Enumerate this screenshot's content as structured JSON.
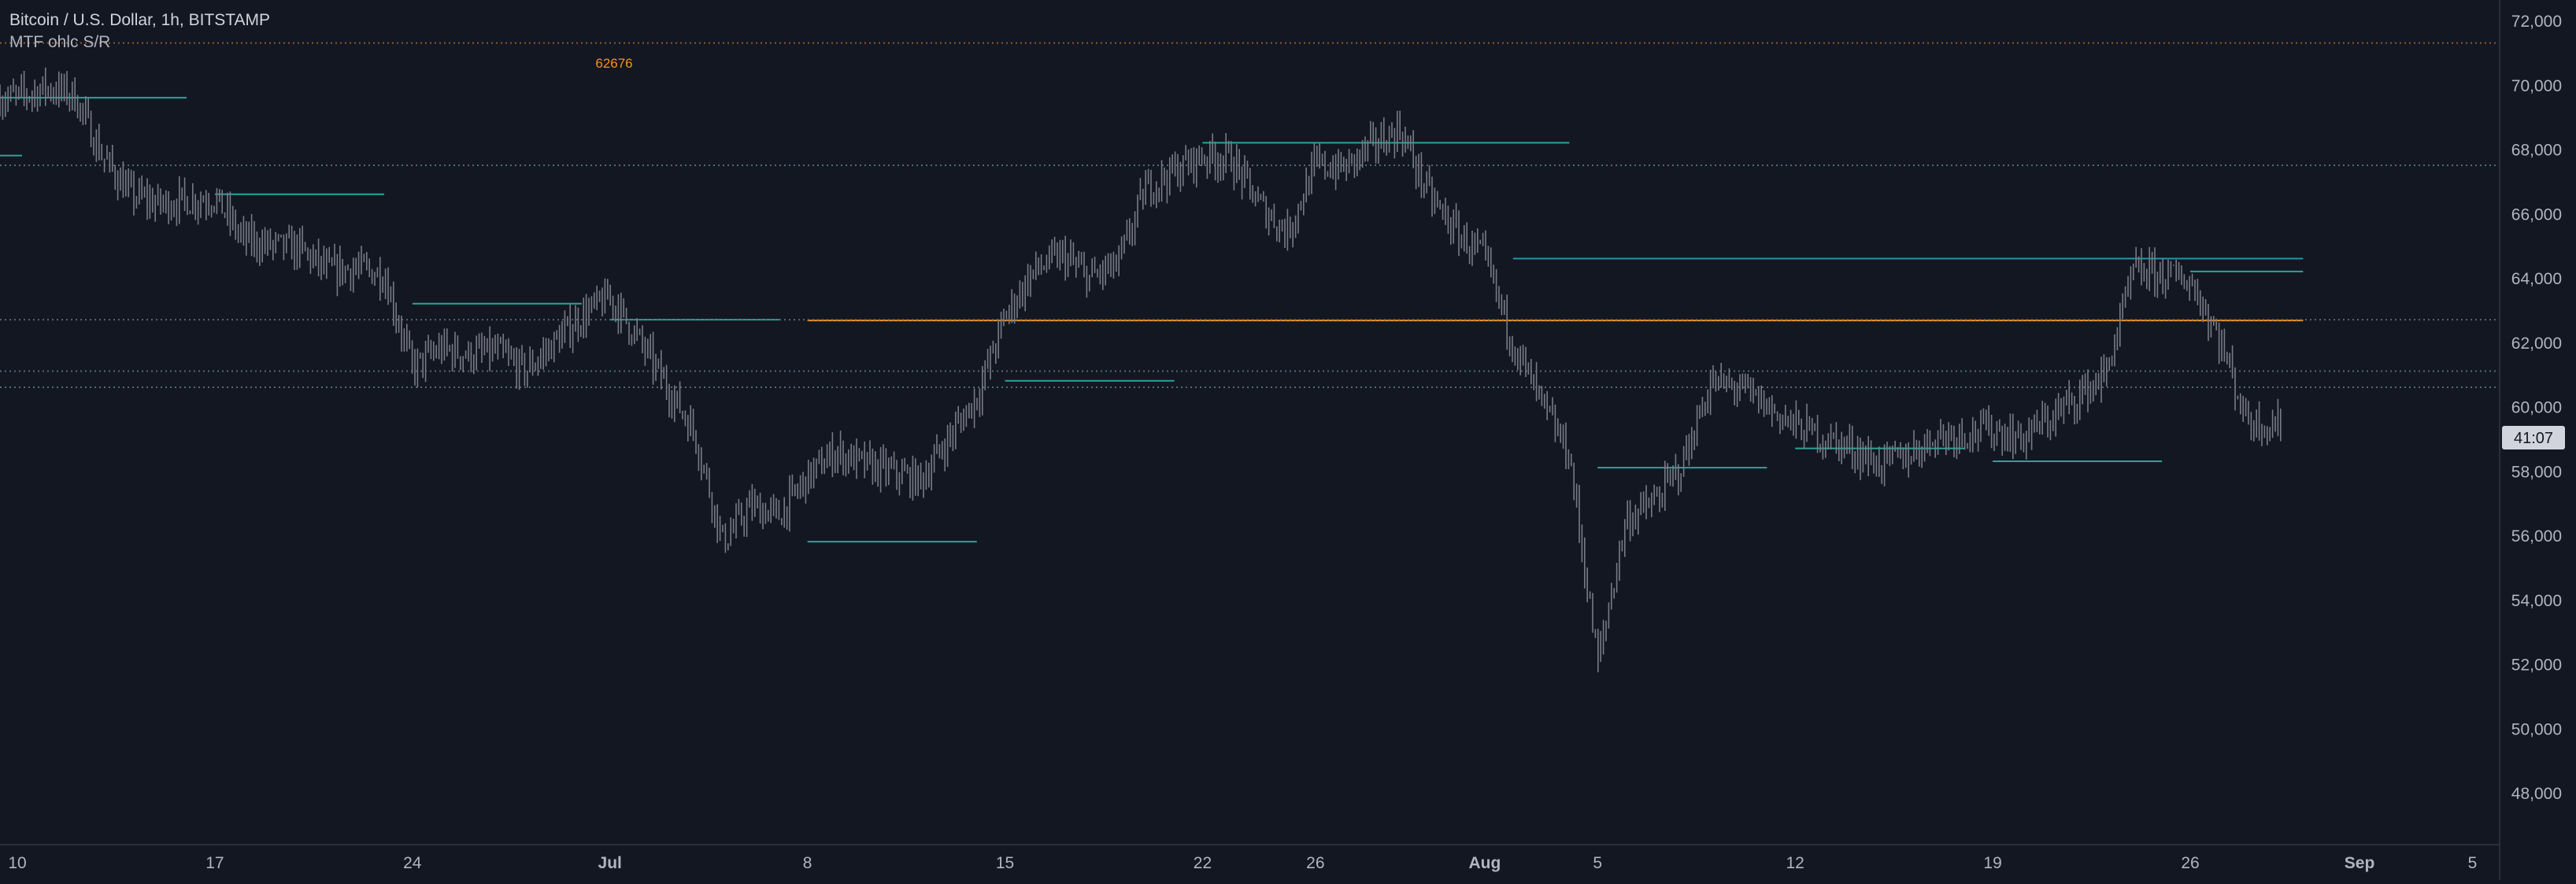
{
  "header": {
    "symbol_title": "Bitcoin / U.S. Dollar, 1h, BITSTAMP",
    "indicator_name": "MTF ohlc S/R"
  },
  "annotations": {
    "top_level_label": "62676",
    "countdown_label": "41:07"
  },
  "colors": {
    "background": "#131722",
    "candles": "#787b86",
    "support_line": "#26a69a",
    "resistance_line": "#2196a8",
    "monthly_line": "#f7931a",
    "dotted_level": "#4e6b7a",
    "top_dotted_level": "#8a5a2c",
    "axis_text": "#b2b5be"
  },
  "chart_data": {
    "type": "line",
    "title": "Bitcoin / U.S. Dollar, 1h, BITSTAMP",
    "x_axis": {
      "tick_labels": [
        "10",
        "17",
        "24",
        "Jul",
        "8",
        "15",
        "22",
        "26",
        "Aug",
        "5",
        "12",
        "19",
        "26",
        "Sep",
        "5"
      ],
      "range": [
        "2024-06-10",
        "2024-09-07"
      ]
    },
    "y_axis": {
      "tick_labels": [
        "72,000",
        "70,000",
        "68,000",
        "66,000",
        "64,000",
        "62,000",
        "60,000",
        "58,000",
        "56,000",
        "54,000",
        "52,000",
        "50,000",
        "48,000"
      ],
      "range": [
        47300,
        72300
      ],
      "position": "right"
    },
    "grid": false,
    "series": [
      {
        "kind": "price",
        "x": [
          "2024-06-10",
          "2024-06-11",
          "2024-06-12",
          "2024-06-13",
          "2024-06-14",
          "2024-06-15",
          "2024-06-17",
          "2024-06-18",
          "2024-06-19",
          "2024-06-20",
          "2024-06-21",
          "2024-06-22",
          "2024-06-23",
          "2024-06-24",
          "2024-06-25",
          "2024-06-26",
          "2024-06-27",
          "2024-06-28",
          "2024-06-30",
          "2024-07-01",
          "2024-07-02",
          "2024-07-04",
          "2024-07-05",
          "2024-07-06",
          "2024-07-07",
          "2024-07-08",
          "2024-07-09",
          "2024-07-10",
          "2024-07-12",
          "2024-07-14",
          "2024-07-15",
          "2024-07-16",
          "2024-07-17",
          "2024-07-18",
          "2024-07-19",
          "2024-07-20",
          "2024-07-21",
          "2024-07-22",
          "2024-07-23",
          "2024-07-24",
          "2024-07-25",
          "2024-07-26",
          "2024-07-27",
          "2024-07-28",
          "2024-07-29",
          "2024-07-30",
          "2024-07-31",
          "2024-08-01",
          "2024-08-02",
          "2024-08-03",
          "2024-08-04",
          "2024-08-05",
          "2024-08-06",
          "2024-08-07",
          "2024-08-08",
          "2024-08-09",
          "2024-08-10",
          "2024-08-12",
          "2024-08-14",
          "2024-08-15",
          "2024-08-16",
          "2024-08-17",
          "2024-08-19",
          "2024-08-20",
          "2024-08-21",
          "2024-08-22",
          "2024-08-23",
          "2024-08-24",
          "2024-08-25",
          "2024-08-26",
          "2024-08-27",
          "2024-08-28",
          "2024-08-29"
        ],
        "values": [
          69600,
          69900,
          69700,
          67800,
          66600,
          66300,
          66500,
          65200,
          65000,
          64900,
          64200,
          64300,
          64100,
          61200,
          61800,
          61600,
          61700,
          61100,
          62800,
          63400,
          62100,
          59200,
          55800,
          56900,
          56600,
          57800,
          58600,
          58200,
          57700,
          60300,
          62800,
          64200,
          64700,
          64000,
          64400,
          66800,
          67300,
          67800,
          67700,
          66300,
          65400,
          67500,
          67400,
          68100,
          68600,
          66600,
          65400,
          64600,
          62000,
          60100,
          58500,
          52000,
          56500,
          57000,
          58200,
          60700,
          60600,
          59400,
          58700,
          58200,
          58500,
          59100,
          59300,
          59000,
          59600,
          60300,
          61000,
          64200,
          64100,
          63900,
          62200,
          59600,
          59400
        ]
      }
    ],
    "levels": [
      {
        "kind": "support",
        "value": 69600,
        "from": "2024-06-10",
        "to": "2024-06-16"
      },
      {
        "kind": "support",
        "value": 66600,
        "from": "2024-06-17",
        "to": "2024-06-23"
      },
      {
        "kind": "support",
        "value": 63200,
        "from": "2024-06-24",
        "to": "2024-06-30"
      },
      {
        "kind": "support",
        "value": 62700,
        "from": "2024-07-01",
        "to": "2024-07-07"
      },
      {
        "kind": "support",
        "value": 55800,
        "from": "2024-07-08",
        "to": "2024-07-14"
      },
      {
        "kind": "support",
        "value": 60800,
        "from": "2024-07-15",
        "to": "2024-07-21"
      },
      {
        "kind": "support",
        "value": 68200,
        "from": "2024-07-22",
        "to": "2024-08-04"
      },
      {
        "kind": "resistance",
        "value": 64600,
        "from": "2024-08-02",
        "to": "2024-08-30"
      },
      {
        "kind": "support",
        "value": 58100,
        "from": "2024-08-05",
        "to": "2024-08-11"
      },
      {
        "kind": "support",
        "value": 58700,
        "from": "2024-08-12",
        "to": "2024-08-18"
      },
      {
        "kind": "support",
        "value": 58300,
        "from": "2024-08-19",
        "to": "2024-08-25"
      },
      {
        "kind": "support",
        "value": 64200,
        "from": "2024-08-26",
        "to": "2024-08-30"
      },
      {
        "kind": "monthly",
        "value": 62676,
        "from": "2024-07-08",
        "to": "2024-08-30"
      },
      {
        "kind": "dotted",
        "value": 71300
      },
      {
        "kind": "dotted",
        "value": 67500
      },
      {
        "kind": "dotted",
        "value": 62700
      },
      {
        "kind": "dotted",
        "value": 61100
      },
      {
        "kind": "dotted",
        "value": 60600
      }
    ],
    "current_price": 59600
  }
}
